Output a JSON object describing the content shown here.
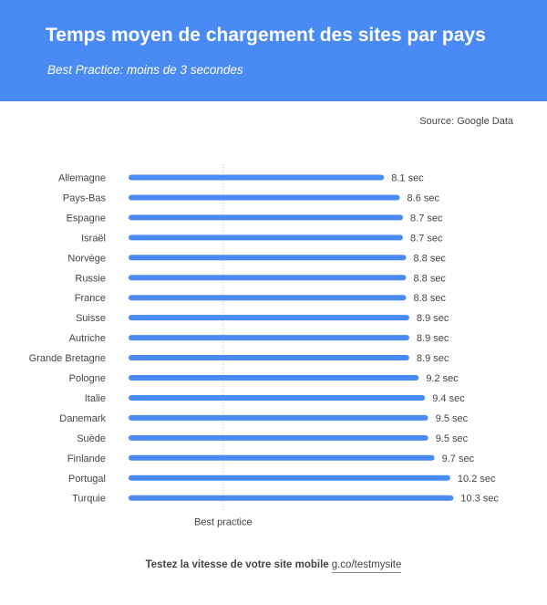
{
  "header": {
    "title": "Temps moyen de chargement des sites par pays",
    "subtitle": "Best Practice: moins de 3 secondes"
  },
  "source": "Source: Google Data",
  "footer": {
    "text": "Testez la vitesse de votre site mobile",
    "link": "g.co/testmysite"
  },
  "colors": {
    "header": "#4a8af4",
    "bar": "#4a8af4"
  },
  "chart_data": {
    "type": "bar",
    "orientation": "horizontal",
    "categories": [
      "Allemagne",
      "Pays-Bas",
      "Espagne",
      "Israël",
      "Norvège",
      "Russie",
      "France",
      "Suisse",
      "Autriche",
      "Grande Bretagne",
      "Pologne",
      "Italie",
      "Danemark",
      "Suède",
      "Finlande",
      "Portugal",
      "Turquie"
    ],
    "values": [
      8.1,
      8.6,
      8.7,
      8.7,
      8.8,
      8.8,
      8.8,
      8.9,
      8.9,
      8.9,
      9.2,
      9.4,
      9.5,
      9.5,
      9.7,
      10.2,
      10.3
    ],
    "value_labels": [
      "8.1 sec",
      "8.6 sec",
      "8.7 sec",
      "8.7 sec",
      "8.8 sec",
      "8.8 sec",
      "8.8 sec",
      "8.9 sec",
      "8.9 sec",
      "8.9 sec",
      "9.2 sec",
      "9.4 sec",
      "9.5 sec",
      "9.5 sec",
      "9.7 sec",
      "10.2 sec",
      "10.3 sec"
    ],
    "unit": "sec",
    "xlim": [
      0,
      10.3
    ],
    "reference_line": {
      "value": 3,
      "label": "Best practice",
      "style": "dotted"
    },
    "grid": false,
    "legend": "none"
  }
}
